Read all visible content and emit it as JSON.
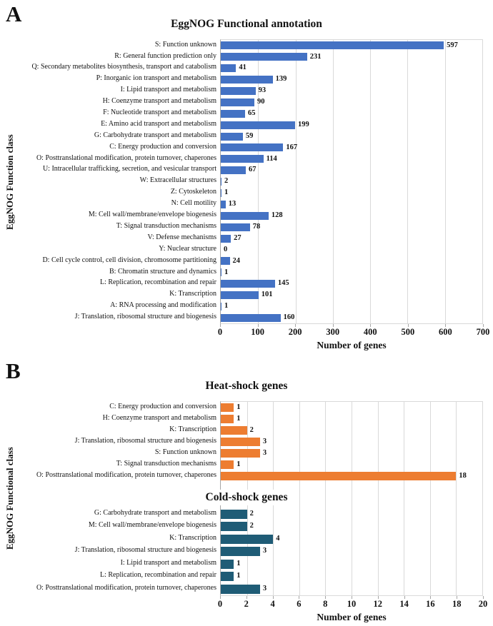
{
  "figure": {
    "panel_a_letter": "A",
    "panel_b_letter": "B"
  },
  "colors": {
    "bar_blue": "#4472C4",
    "bar_orange": "#ED7D31",
    "bar_teal": "#1F5C76",
    "grid": "#D9D9D9",
    "axis_line": "#A6A6A6"
  },
  "chart_data": [
    {
      "id": "eggnog-annotation",
      "type": "bar",
      "orientation": "horizontal",
      "title": "EggNOG Functional annotation",
      "ylabel": "EggNOG Function class",
      "xlabel": "Number of genes",
      "bar_color": "#4472C4",
      "xlim": [
        0,
        700
      ],
      "xticks": [
        0,
        100,
        200,
        300,
        400,
        500,
        600,
        700
      ],
      "grid_step": 100,
      "grid": true,
      "legend": "none",
      "categories": [
        "S: Function unknown",
        "R: General function prediction only",
        "Q: Secondary metabolites biosynthesis, transport and catabolism",
        "P: Inorganic ion transport and metabolism",
        "I: Lipid transport and metabolism",
        "H: Coenzyme transport and metabolism",
        "F: Nucleotide transport and metabolism",
        "E: Amino acid transport and metabolism",
        "G: Carbohydrate transport and metabolism",
        "C: Energy production and conversion",
        "O: Posttranslational modification, protein turnover, chaperones",
        "U: Intracellular trafficking, secretion, and vesicular transport",
        "W: Extracellular structures",
        "Z: Cytoskeleton",
        "N: Cell motility",
        "M: Cell wall/membrane/envelope biogenesis",
        "T: Signal transduction mechanisms",
        "V: Defense mechanisms",
        "Y: Nuclear structure",
        "D: Cell cycle control, cell division, chromosome partitioning",
        "B: Chromatin structure and dynamics",
        "L: Replication, recombination and repair",
        "K: Transcription",
        "A: RNA processing and modification",
        "J: Translation, ribosomal structure and biogenesis"
      ],
      "values": [
        597,
        231,
        41,
        139,
        93,
        90,
        65,
        199,
        59,
        167,
        114,
        67,
        2,
        1,
        13,
        128,
        78,
        27,
        0,
        24,
        1,
        145,
        101,
        1,
        160
      ]
    },
    {
      "id": "heat-shock",
      "type": "bar",
      "orientation": "horizontal",
      "title": "Heat-shock genes",
      "ylabel": "EggNOG Functional class",
      "xlabel": "Number of genes",
      "bar_color": "#ED7D31",
      "xlim": [
        0,
        20
      ],
      "xticks": [
        0,
        2,
        4,
        6,
        8,
        10,
        12,
        14,
        16,
        18,
        20
      ],
      "grid_step": 2,
      "grid": true,
      "legend": "none",
      "categories": [
        "C: Energy production and conversion",
        "H: Coenzyme transport and metabolism",
        "K: Transcription",
        "J: Translation, ribosomal structure and biogenesis",
        "S: Function unknown",
        "T: Signal transduction mechanisms",
        "O: Posttranslational modification, protein turnover, chaperones"
      ],
      "values": [
        1,
        1,
        2,
        3,
        3,
        1,
        18
      ]
    },
    {
      "id": "cold-shock",
      "type": "bar",
      "orientation": "horizontal",
      "title": "Cold-shock genes",
      "ylabel": "EggNOG Functional class",
      "xlabel": "Number of genes",
      "bar_color": "#1F5C76",
      "xlim": [
        0,
        20
      ],
      "xticks": [
        0,
        2,
        4,
        6,
        8,
        10,
        12,
        14,
        16,
        18,
        20
      ],
      "grid_step": 2,
      "grid": true,
      "legend": "none",
      "categories": [
        "G: Carbohydrate transport and metabolism",
        "M: Cell wall/membrane/envelope biogenesis",
        "K: Transcription",
        "J: Translation, ribosomal structure and biogenesis",
        "I: Lipid transport and metabolism",
        "L: Replication, recombination and repair",
        "O: Posttranslational modification, protein turnover, chaperones"
      ],
      "values": [
        2,
        2,
        4,
        3,
        1,
        1,
        3
      ]
    }
  ]
}
